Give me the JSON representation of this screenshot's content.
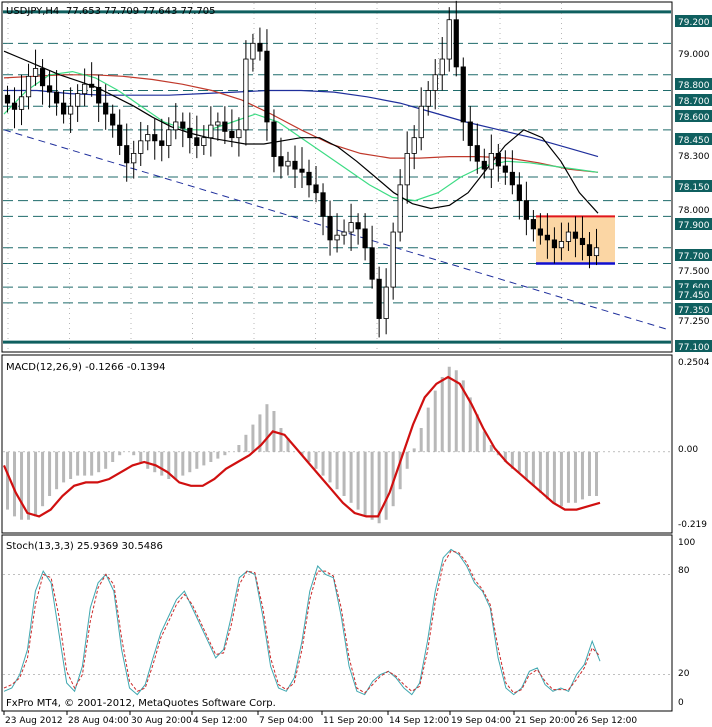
{
  "window": {
    "symbol": "USDJPY,H4",
    "ohlc": "77.653 77.709 77.643 77.705",
    "copyright": "FxPro MT4, © 2001-2012, MetaQuotes Software Corp."
  },
  "colors": {
    "frame": "#000000",
    "grid": "#000000",
    "hline": "#1f6b6b",
    "hline_thick": "#0f5f5f",
    "candle": "#000000",
    "ma_fast": "#000000",
    "ma_green": "#3ddc84",
    "ma_red": "#c0392b",
    "ma_blue": "#1f2f9c",
    "trend": "#1f2f9c",
    "box_fill": "#fbd6a4",
    "box_top": "#e0161b",
    "box_bottom": "#1010d0",
    "macd_hist": "#b8b8b8",
    "macd_signal": "#d01010",
    "stoch_main": "#3fa7b0",
    "stoch_signal": "#cc2a2a"
  },
  "chart_data": [
    {
      "type": "candlestick",
      "title": "USDJPY,H4",
      "ylim": [
        77.05,
        79.25
      ],
      "price_labels": [
        "79.200",
        "79.000",
        "78.800",
        "78.700",
        "78.600",
        "78.450",
        "78.300",
        "78.150",
        "78.000",
        "77.900",
        "77.700",
        "77.500",
        "77.600",
        "77.450",
        "77.350",
        "77.250",
        "77.100"
      ],
      "levels": [
        79.2,
        79.0,
        78.8,
        78.7,
        78.6,
        78.45,
        78.15,
        78.0,
        77.9,
        77.7,
        77.6,
        77.45,
        77.35,
        77.1
      ],
      "x_labels": [
        "23 Aug 2012",
        "28 Aug 04:00",
        "30 Aug 20:00",
        "4 Sep 12:00",
        "7 Sep 04:00",
        "11 Sep 20:00",
        "14 Sep 12:00",
        "19 Sep 04:00",
        "21 Sep 20:00",
        "26 Sep 12:00"
      ],
      "closes": [
        78.62,
        78.58,
        78.66,
        78.79,
        78.84,
        78.73,
        78.69,
        78.62,
        78.55,
        78.6,
        78.68,
        78.74,
        78.72,
        78.62,
        78.55,
        78.48,
        78.35,
        78.24,
        78.3,
        78.38,
        78.42,
        78.38,
        78.35,
        78.45,
        78.5,
        78.46,
        78.4,
        78.35,
        78.4,
        78.48,
        78.5,
        78.44,
        78.4,
        78.45,
        78.9,
        79.0,
        78.95,
        78.5,
        78.28,
        78.22,
        78.25,
        78.2,
        78.18,
        78.1,
        78.05,
        77.9,
        77.75,
        77.78,
        77.8,
        77.86,
        77.82,
        77.7,
        77.5,
        77.25,
        77.45,
        77.8,
        78.1,
        78.3,
        78.4,
        78.6,
        78.7,
        78.8,
        78.9,
        79.15,
        78.85,
        78.5,
        78.35,
        78.25,
        78.2,
        78.3,
        78.22,
        78.18,
        78.1,
        78.0,
        77.88,
        77.82,
        77.78,
        77.75,
        77.7,
        77.74,
        77.8,
        77.76,
        77.72,
        77.65,
        77.7
      ],
      "series_ma": {
        "black": [
          78.95,
          78.9,
          78.85,
          78.8,
          78.76,
          78.72,
          78.66,
          78.6,
          78.53,
          78.47,
          78.43,
          78.4,
          78.38,
          78.36,
          78.36,
          78.38,
          78.4,
          78.4,
          78.34,
          78.25,
          78.15,
          78.05,
          77.98,
          77.95,
          77.97,
          78.05,
          78.2,
          78.35,
          78.45,
          78.4,
          78.25,
          78.05,
          77.92
        ],
        "green": [
          78.55,
          78.7,
          78.8,
          78.82,
          78.78,
          78.7,
          78.6,
          78.5,
          78.45,
          78.45,
          78.5,
          78.55,
          78.5,
          78.4,
          78.3,
          78.2,
          78.1,
          78.02,
          78.0,
          78.05,
          78.15,
          78.22,
          78.25,
          78.24,
          78.22,
          78.2,
          78.18
        ],
        "red": [
          78.78,
          78.79,
          78.8,
          78.8,
          78.79,
          78.77,
          78.74,
          78.7,
          78.64,
          78.55,
          78.45,
          78.36,
          78.3,
          78.27,
          78.27,
          78.28,
          78.28,
          78.27,
          78.24,
          78.2,
          78.18
        ],
        "blue": [
          78.7,
          78.7,
          78.68,
          78.67,
          78.67,
          78.67,
          78.68,
          78.69,
          78.7,
          78.7,
          78.69,
          78.66,
          78.62,
          78.56,
          78.5,
          78.45,
          78.4,
          78.34,
          78.28
        ]
      },
      "trendline": [
        78.45,
        77.18
      ],
      "box": {
        "top": 77.9,
        "bottom": 77.6
      }
    },
    {
      "type": "bar",
      "title": "MACD(12,26,9) -0.1266 -0.1394",
      "ylim": [
        -0.23,
        0.27
      ],
      "tick_labels": [
        "0.2504",
        "0.00",
        "-0.219"
      ],
      "histogram": [
        -0.17,
        -0.19,
        -0.2,
        -0.2,
        -0.19,
        -0.16,
        -0.13,
        -0.11,
        -0.09,
        -0.08,
        -0.07,
        -0.07,
        -0.07,
        -0.06,
        -0.05,
        -0.03,
        -0.01,
        0.0,
        -0.01,
        -0.03,
        -0.05,
        -0.06,
        -0.07,
        -0.08,
        -0.08,
        -0.07,
        -0.06,
        -0.05,
        -0.04,
        -0.03,
        -0.02,
        -0.01,
        0.0,
        0.02,
        0.05,
        0.08,
        0.11,
        0.14,
        0.12,
        0.07,
        0.04,
        0.0,
        -0.01,
        -0.03,
        -0.05,
        -0.07,
        -0.09,
        -0.11,
        -0.13,
        -0.15,
        -0.17,
        -0.19,
        -0.2,
        -0.21,
        -0.2,
        -0.16,
        -0.11,
        -0.05,
        0.01,
        0.07,
        0.13,
        0.18,
        0.22,
        0.25,
        0.24,
        0.21,
        0.16,
        0.11,
        0.06,
        0.02,
        -0.01,
        -0.03,
        -0.05,
        -0.06,
        -0.08,
        -0.1,
        -0.12,
        -0.14,
        -0.15,
        -0.16,
        -0.15,
        -0.15,
        -0.14,
        -0.13,
        -0.13
      ],
      "signal": [
        -0.04,
        -0.12,
        -0.18,
        -0.19,
        -0.17,
        -0.13,
        -0.1,
        -0.09,
        -0.09,
        -0.08,
        -0.06,
        -0.04,
        -0.03,
        -0.04,
        -0.06,
        -0.09,
        -0.1,
        -0.1,
        -0.08,
        -0.05,
        -0.03,
        -0.01,
        0.02,
        0.06,
        0.05,
        0.01,
        -0.03,
        -0.07,
        -0.11,
        -0.15,
        -0.18,
        -0.19,
        -0.19,
        -0.12,
        -0.02,
        0.08,
        0.16,
        0.2,
        0.22,
        0.2,
        0.14,
        0.07,
        0.01,
        -0.03,
        -0.06,
        -0.09,
        -0.12,
        -0.15,
        -0.17,
        -0.17,
        -0.16,
        -0.15
      ]
    },
    {
      "type": "line",
      "title": "Stoch(13,3,3) 25.9369 30.5486",
      "ylim": [
        0,
        100
      ],
      "tick_labels": [
        "100",
        "80",
        "20",
        "0"
      ],
      "levels": [
        80,
        20
      ],
      "main": [
        10,
        12,
        20,
        35,
        70,
        82,
        75,
        45,
        15,
        10,
        25,
        60,
        75,
        80,
        70,
        35,
        12,
        8,
        14,
        30,
        45,
        55,
        65,
        70,
        60,
        50,
        40,
        30,
        35,
        55,
        78,
        82,
        80,
        55,
        25,
        12,
        10,
        18,
        40,
        70,
        85,
        80,
        78,
        55,
        25,
        10,
        8,
        16,
        20,
        22,
        18,
        12,
        8,
        15,
        40,
        70,
        90,
        95,
        92,
        85,
        75,
        70,
        60,
        30,
        12,
        8,
        12,
        22,
        24,
        14,
        10,
        12,
        10,
        20,
        26,
        40,
        28
      ],
      "signal": [
        12,
        14,
        18,
        30,
        62,
        80,
        78,
        55,
        22,
        12,
        20,
        52,
        72,
        80,
        74,
        42,
        16,
        10,
        12,
        26,
        42,
        52,
        62,
        68,
        62,
        52,
        42,
        32,
        33,
        50,
        74,
        82,
        81,
        60,
        30,
        14,
        11,
        15,
        35,
        65,
        82,
        82,
        79,
        60,
        30,
        12,
        9,
        14,
        19,
        22,
        19,
        14,
        10,
        13,
        34,
        64,
        86,
        94,
        93,
        87,
        77,
        71,
        62,
        36,
        15,
        9,
        11,
        20,
        23,
        16,
        11,
        11,
        11,
        17,
        24,
        36,
        31
      ]
    }
  ]
}
